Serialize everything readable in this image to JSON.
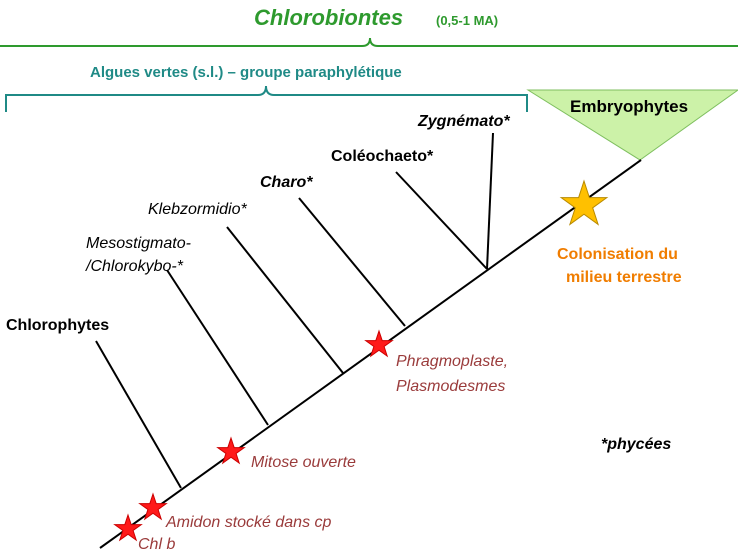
{
  "header": {
    "title": "Chlorobiontes",
    "age": "(0,5-1 MA)"
  },
  "algues_bracket": {
    "label": "Algues vertes (s.l.) – groupe paraphylétique"
  },
  "embryophytes": {
    "label": "Embryophytes",
    "fill_color": "#ccf2a8"
  },
  "taxa": {
    "zygnemato": "Zygnémato*",
    "coleochaeto": "Coléochaeto*",
    "charo": "Charo*",
    "klebzormidio": "Klebzormidio*",
    "mesostigmato_line1": "Mesostigmato-",
    "mesostigmato_line2": "/Chlorokybo-*",
    "chlorophytes": "Chlorophytes"
  },
  "traits": {
    "phragmoplaste_line1": "Phragmoplaste,",
    "phragmoplaste_line2": "Plasmodesmes",
    "mitose": "Mitose ouverte",
    "amidon": "Amidon stocké dans cp",
    "chl_b": "Chl b",
    "colonisation_line1": "Colonisation du",
    "colonisation_line2": "milieu terrestre"
  },
  "note": "*phycées",
  "colors": {
    "green": "#2e9a2e",
    "teal": "#1f8a86",
    "trait_text": "#9a3b3b",
    "orange": "#f07d00",
    "red_star": "#ff1a1a",
    "gold_star": "#ffc000"
  },
  "icons": {
    "trait_marker": "red-star-icon",
    "terrestrial_marker": "gold-star-icon"
  }
}
